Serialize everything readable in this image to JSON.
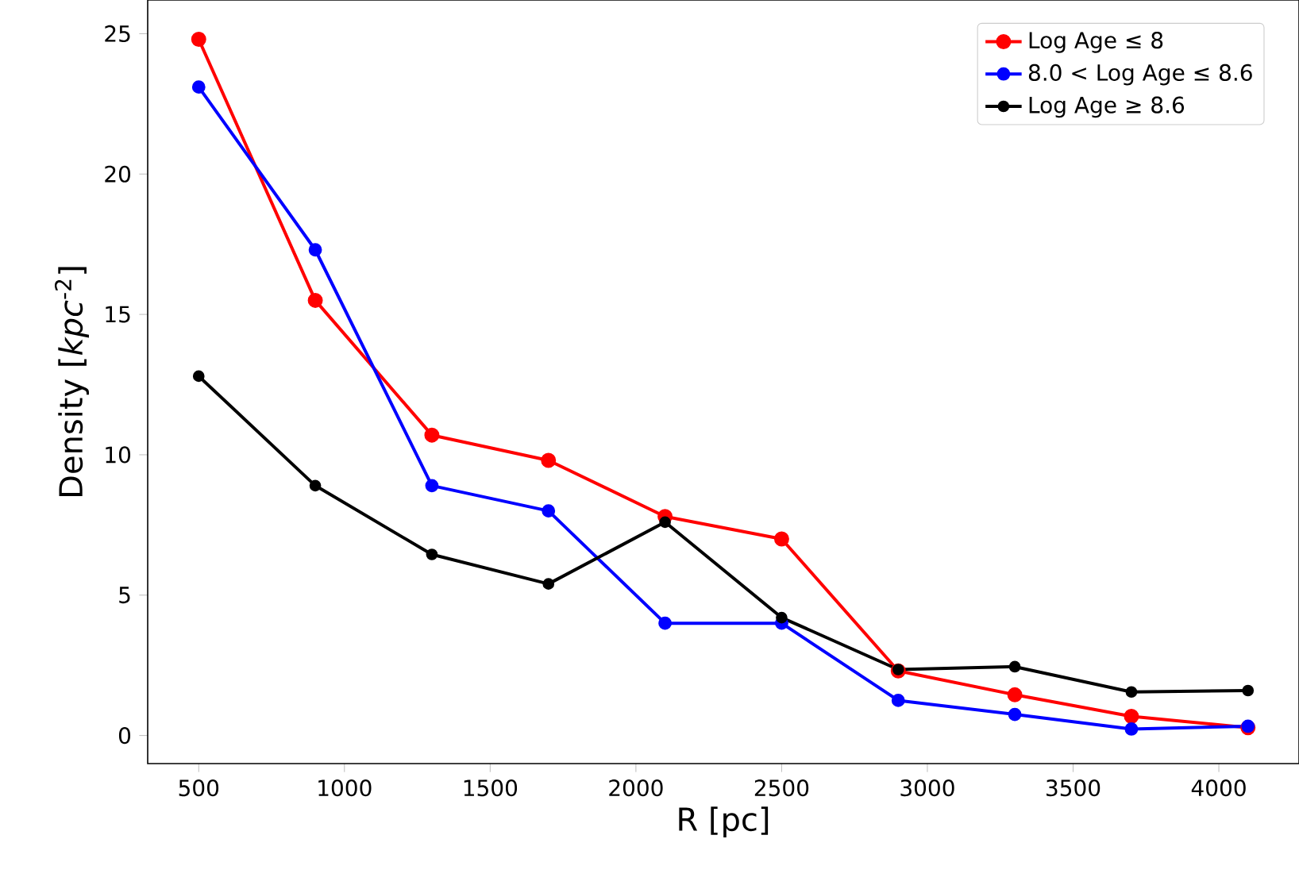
{
  "chart_data": {
    "type": "line",
    "xlabel": "R [pc]",
    "ylabel": "Density [*kpc*$^{-2}$]",
    "x": [
      500,
      900,
      1300,
      1700,
      2100,
      2500,
      2900,
      3300,
      3700,
      4100
    ],
    "series": [
      {
        "name": "Log Age ≤ 8",
        "color": "#ff0000",
        "values": [
          24.8,
          15.5,
          10.7,
          9.8,
          7.8,
          7.0,
          2.3,
          1.45,
          0.68,
          0.28
        ]
      },
      {
        "name": "8.0 < Log Age ≤ 8.6",
        "color": "#0000ff",
        "values": [
          23.1,
          17.3,
          8.9,
          8.0,
          4.0,
          4.0,
          1.25,
          0.75,
          0.23,
          0.33
        ]
      },
      {
        "name": "Log Age ≥ 8.6",
        "color": "#000000",
        "values": [
          12.8,
          8.9,
          6.45,
          5.4,
          7.6,
          4.2,
          2.35,
          2.45,
          1.55,
          1.6
        ]
      }
    ],
    "xlim": [
      325,
      4275
    ],
    "ylim": [
      -1,
      26.2
    ],
    "xticks": [
      500,
      1000,
      1500,
      2000,
      2500,
      3000,
      3500,
      4000
    ],
    "yticks": [
      0,
      5,
      10,
      15,
      20,
      25
    ],
    "marker": "circle",
    "legend": "top right",
    "grid": false
  }
}
